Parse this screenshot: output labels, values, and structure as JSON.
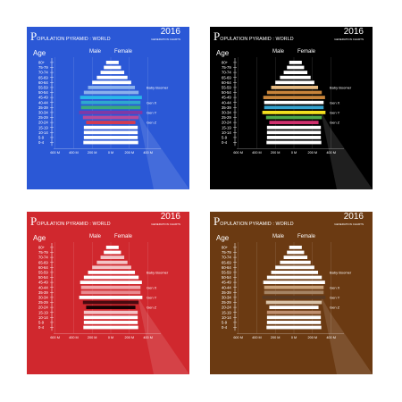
{
  "chart_data": [
    {
      "type": "bar",
      "title_initial": "P",
      "title_rest": "OPULATION PYRAMID : WORLD",
      "year": "2016",
      "subtitle": "GENERATION CHARTS",
      "ylabel": "Age",
      "male_label": "Male",
      "female_label": "Female",
      "background": "#2b58d6",
      "categories": [
        "80+",
        "75-79",
        "70-74",
        "65-69",
        "60-64",
        "55-59",
        "50-54",
        "45-49",
        "40-44",
        "35-39",
        "30-34",
        "25-29",
        "20-24",
        "15-19",
        "10-14",
        "5-9",
        "0-4"
      ],
      "series": [
        {
          "name": "Male",
          "values": [
            -50,
            -75,
            -110,
            -150,
            -200,
            -245,
            -290,
            -330,
            -320,
            -320,
            -340,
            -300,
            -265,
            -290,
            -290,
            -290,
            -295
          ]
        },
        {
          "name": "Female",
          "values": [
            85,
            110,
            145,
            180,
            220,
            260,
            300,
            335,
            320,
            320,
            340,
            300,
            265,
            290,
            290,
            290,
            295
          ]
        }
      ],
      "bar_colors": [
        "#ffffff",
        "#ffffff",
        "#ffffff",
        "#ffffff",
        "#ffffff",
        "#8ab0ec",
        "#8ab0ec",
        "#29b7e8",
        "#2fa7cf",
        "#3aaa7e",
        "#7e3aa6",
        "#b84a9a",
        "#d23a52",
        "#ffffff",
        "#ffffff",
        "#ffffff",
        "#ffffff"
      ],
      "xticks": [
        "600 M",
        "400 M",
        "200 M",
        "0 M",
        "200 M",
        "400 M"
      ],
      "xtick_values": [
        -600,
        -400,
        -200,
        0,
        200,
        400
      ],
      "generations": [
        {
          "label": "Baby Boomer",
          "category": "55-59"
        },
        {
          "label": "Gen X",
          "category": "40-44"
        },
        {
          "label": "Gen Y",
          "category": "30-34"
        },
        {
          "label": "Gen Z",
          "category": "20-24"
        }
      ]
    },
    {
      "type": "bar",
      "title_initial": "P",
      "title_rest": "OPULATION PYRAMID : WORLD",
      "year": "2016",
      "subtitle": "GENERATION CHARTS",
      "ylabel": "Age",
      "male_label": "Male",
      "female_label": "Female",
      "background": "#000000",
      "categories": [
        "80+",
        "75-79",
        "70-74",
        "65-69",
        "60-64",
        "55-59",
        "50-54",
        "45-49",
        "40-44",
        "35-39",
        "30-34",
        "25-29",
        "20-24",
        "15-19",
        "10-14",
        "5-9",
        "0-4"
      ],
      "series": [
        {
          "name": "Male",
          "values": [
            -50,
            -75,
            -110,
            -150,
            -200,
            -245,
            -290,
            -330,
            -320,
            -320,
            -340,
            -300,
            -265,
            -290,
            -290,
            -290,
            -295
          ]
        },
        {
          "name": "Female",
          "values": [
            85,
            110,
            145,
            180,
            220,
            260,
            300,
            335,
            320,
            320,
            340,
            300,
            265,
            290,
            290,
            290,
            295
          ]
        }
      ],
      "bar_colors": [
        "#ffffff",
        "#ffffff",
        "#ffffff",
        "#ffffff",
        "#ffffff",
        "#e6b980",
        "#c8843a",
        "#c8843a",
        "#ffffff",
        "#35a3d0",
        "#f4e01f",
        "#4ea84a",
        "#d0306e",
        "#ffffff",
        "#ffffff",
        "#ffffff",
        "#ffffff"
      ],
      "xticks": [
        "600 M",
        "400 M",
        "200 M",
        "0 M",
        "200 M",
        "400 M"
      ],
      "xtick_values": [
        -600,
        -400,
        -200,
        0,
        200,
        400
      ],
      "generations": [
        {
          "label": "Baby Boomer",
          "category": "55-59"
        },
        {
          "label": "Gen X",
          "category": "40-44"
        },
        {
          "label": "Gen Y",
          "category": "30-34"
        },
        {
          "label": "Gen Z",
          "category": "20-24"
        }
      ]
    },
    {
      "type": "bar",
      "title_initial": "P",
      "title_rest": "OPULATION PYRAMID : WORLD",
      "year": "2016",
      "subtitle": "GENERATION CHARTS",
      "ylabel": "Age",
      "male_label": "Male",
      "female_label": "Female",
      "background": "#d0282e",
      "categories": [
        "80+",
        "75-79",
        "70-74",
        "65-69",
        "60-64",
        "55-59",
        "50-54",
        "45-49",
        "40-44",
        "35-39",
        "30-34",
        "25-29",
        "20-24",
        "15-19",
        "10-14",
        "5-9",
        "0-4"
      ],
      "series": [
        {
          "name": "Male",
          "values": [
            -50,
            -75,
            -110,
            -150,
            -200,
            -245,
            -290,
            -330,
            -320,
            -320,
            -340,
            -300,
            -265,
            -290,
            -290,
            -290,
            -295
          ]
        },
        {
          "name": "Female",
          "values": [
            85,
            110,
            145,
            180,
            220,
            260,
            300,
            335,
            320,
            320,
            340,
            300,
            265,
            290,
            290,
            290,
            295
          ]
        }
      ],
      "bar_colors": [
        "#ffffff",
        "#ffffff",
        "#f3c4c6",
        "#f3c4c6",
        "#f3c4c6",
        "#ffffff",
        "#ffffff",
        "#ffffff",
        "#f0a6aa",
        "#e98a90",
        "#ffffff",
        "#4a0a10",
        "#1a0204",
        "#f3c4c6",
        "#ffffff",
        "#ffffff",
        "#ffffff"
      ],
      "xticks": [
        "600 M",
        "400 M",
        "200 M",
        "0 M",
        "200 M",
        "400 M"
      ],
      "xtick_values": [
        -600,
        -400,
        -200,
        0,
        200,
        400
      ],
      "generations": [
        {
          "label": "Baby Boomer",
          "category": "55-59"
        },
        {
          "label": "Gen X",
          "category": "40-44"
        },
        {
          "label": "Gen Y",
          "category": "30-34"
        },
        {
          "label": "Gen Z",
          "category": "20-24"
        }
      ]
    },
    {
      "type": "bar",
      "title_initial": "P",
      "title_rest": "OPULATION PYRAMID : WORLD",
      "year": "2016",
      "subtitle": "GENERATION CHARTS",
      "ylabel": "Age",
      "male_label": "Male",
      "female_label": "Female",
      "background": "#6b3a12",
      "categories": [
        "80+",
        "75-79",
        "70-74",
        "65-69",
        "60-64",
        "55-59",
        "50-54",
        "45-49",
        "40-44",
        "35-39",
        "30-34",
        "25-29",
        "20-24",
        "15-19",
        "10-14",
        "5-9",
        "0-4"
      ],
      "series": [
        {
          "name": "Male",
          "values": [
            -50,
            -75,
            -110,
            -150,
            -200,
            -245,
            -290,
            -330,
            -320,
            -320,
            -340,
            -300,
            -265,
            -290,
            -290,
            -290,
            -295
          ]
        },
        {
          "name": "Female",
          "values": [
            85,
            110,
            145,
            180,
            220,
            260,
            300,
            335,
            320,
            320,
            340,
            300,
            265,
            290,
            290,
            290,
            295
          ]
        }
      ],
      "bar_colors": [
        "#ffffff",
        "#ffffff",
        "#ffffff",
        "#ffffff",
        "#ffffff",
        "#ffffff",
        "#ffffff",
        "#ffffff",
        "#c9a27a",
        "#a58464",
        "#5a3a22",
        "#d9c3a8",
        "#ffffff",
        "#c09070",
        "#ffffff",
        "#ffffff",
        "#ffffff"
      ],
      "xticks": [
        "600 M",
        "400 M",
        "200 M",
        "0 M",
        "200 M",
        "400 M"
      ],
      "xtick_values": [
        -600,
        -400,
        -200,
        0,
        200,
        400
      ],
      "generations": [
        {
          "label": "Baby Boomer",
          "category": "55-59"
        },
        {
          "label": "Gen X",
          "category": "40-44"
        },
        {
          "label": "Gen Y",
          "category": "30-34"
        },
        {
          "label": "Gen Z",
          "category": "20-24"
        }
      ]
    }
  ]
}
